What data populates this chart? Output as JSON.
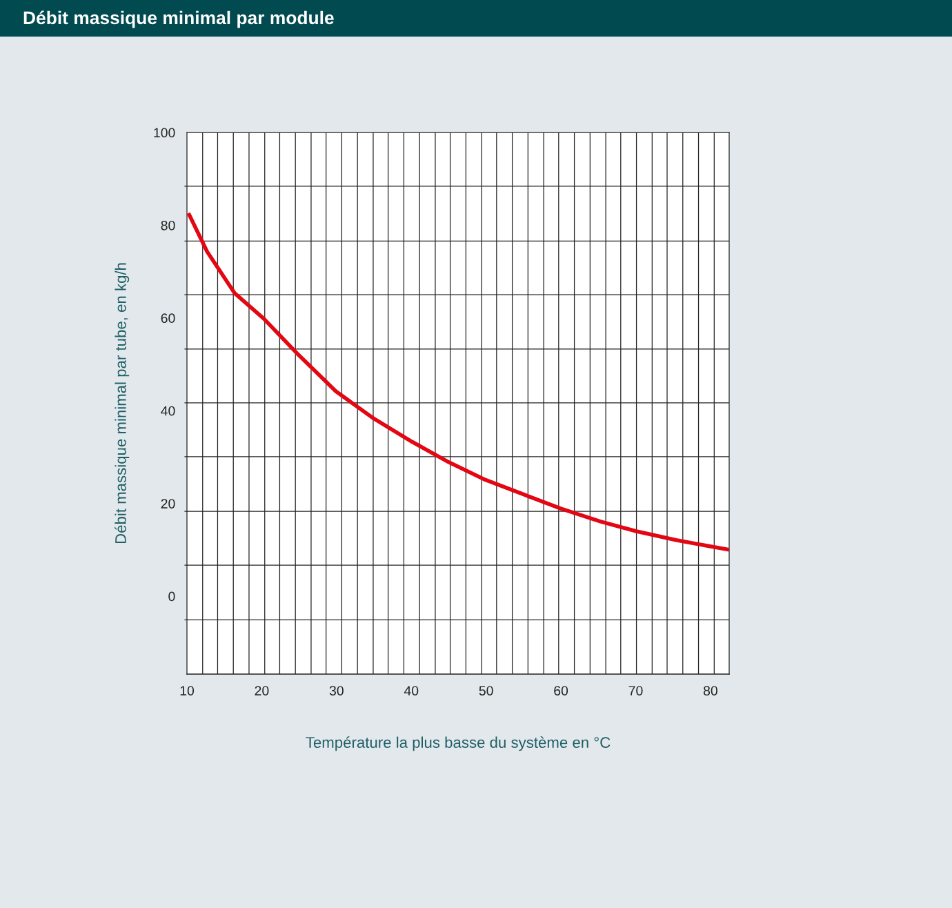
{
  "chart_data": {
    "type": "line",
    "title": "Débit massique minimal par module",
    "xlabel": "Température la plus basse du système en °C",
    "ylabel": "Débit massique minimal par tube, en kg/h",
    "x": [
      10.2,
      12.7,
      16.4,
      20.3,
      24.7,
      29.9,
      34.8,
      40.1,
      45.0,
      49.9,
      55.1,
      60.0,
      65.3,
      70.1,
      75.4,
      82.5
    ],
    "series": [
      {
        "color": "#e30613",
        "values": [
          82.6,
          74.3,
          65.3,
          59.8,
          52.4,
          44.2,
          38.5,
          33.3,
          28.9,
          25.1,
          21.9,
          18.9,
          16.1,
          14.0,
          12.1,
          10.0
        ]
      }
    ],
    "xlim": [
      10,
      82.5
    ],
    "ylim": [
      -16.8,
      100
    ],
    "xticks": [
      10,
      20,
      30,
      40,
      50,
      60,
      70,
      80,
      {
        "value": 12.1,
        "label": null
      },
      {
        "value": 14.1,
        "label": null
      },
      {
        "value": 16.2,
        "label": null
      },
      {
        "value": 18.3,
        "label": null
      },
      {
        "value": 20.4,
        "label": null
      },
      {
        "value": 22.4,
        "label": null
      },
      {
        "value": 24.5,
        "label": null
      },
      {
        "value": 26.6,
        "label": null
      },
      {
        "value": 28.6,
        "label": null
      },
      {
        "value": 30.7,
        "label": null
      },
      {
        "value": 32.8,
        "label": null
      },
      {
        "value": 34.9,
        "label": null
      },
      {
        "value": 36.9,
        "label": null
      },
      {
        "value": 39.0,
        "label": null
      },
      {
        "value": 41.1,
        "label": null
      },
      {
        "value": 43.2,
        "label": null
      },
      {
        "value": 45.2,
        "label": null
      },
      {
        "value": 47.3,
        "label": null
      },
      {
        "value": 49.4,
        "label": null
      },
      {
        "value": 51.4,
        "label": null
      },
      {
        "value": 53.5,
        "label": null
      },
      {
        "value": 55.6,
        "label": null
      },
      {
        "value": 57.7,
        "label": null
      },
      {
        "value": 59.7,
        "label": null
      },
      {
        "value": 61.8,
        "label": null
      },
      {
        "value": 63.9,
        "label": null
      },
      {
        "value": 66.0,
        "label": null
      },
      {
        "value": 68.0,
        "label": null
      },
      {
        "value": 70.1,
        "label": null
      },
      {
        "value": 72.2,
        "label": null
      },
      {
        "value": 74.2,
        "label": null
      },
      {
        "value": 76.3,
        "label": null
      },
      {
        "value": 78.4,
        "label": null
      },
      {
        "value": 80.5,
        "label": null
      }
    ],
    "yticks": [
      0,
      20,
      40,
      60,
      80,
      100,
      {
        "value": 88.4,
        "label": null
      },
      {
        "value": 76.6,
        "label": null
      },
      {
        "value": 65.0,
        "label": null
      },
      {
        "value": 53.3,
        "label": null
      },
      {
        "value": 41.7,
        "label": null
      },
      {
        "value": 30.1,
        "label": null
      },
      {
        "value": 18.3,
        "label": null
      },
      {
        "value": 6.7,
        "label": null
      },
      {
        "value": -5.1,
        "label": null
      }
    ],
    "grid": true,
    "marker": "none",
    "line_style": "solid"
  }
}
